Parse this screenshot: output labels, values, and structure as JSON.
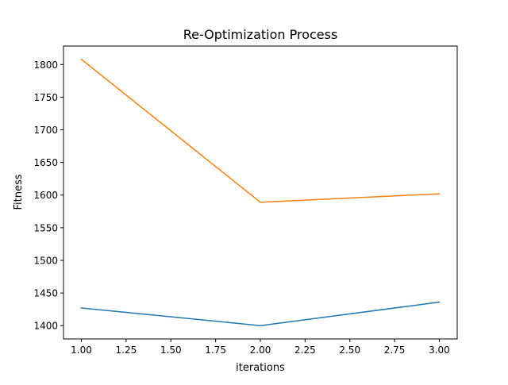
{
  "chart_data": {
    "type": "line",
    "title": "Re-Optimization Process",
    "xlabel": "iterations",
    "ylabel": "Fitness",
    "xlim": [
      0.9,
      3.1
    ],
    "ylim": [
      1379.6,
      1828.3
    ],
    "x_ticks": [
      "1.00",
      "1.25",
      "1.50",
      "1.75",
      "2.00",
      "2.25",
      "2.50",
      "2.75",
      "3.00"
    ],
    "y_ticks": [
      "1400",
      "1450",
      "1500",
      "1550",
      "1600",
      "1650",
      "1700",
      "1750",
      "1800"
    ],
    "x_tick_values": [
      1.0,
      1.25,
      1.5,
      1.75,
      2.0,
      2.25,
      2.5,
      2.75,
      3.0
    ],
    "y_tick_values": [
      1400,
      1450,
      1500,
      1550,
      1600,
      1650,
      1700,
      1750,
      1800
    ],
    "grid": false,
    "legend": "none",
    "x": [
      1,
      2,
      3
    ],
    "series": [
      {
        "color": "#1f77b4",
        "values": [
          1427,
          1400,
          1436
        ]
      },
      {
        "color": "#ff7f0e",
        "values": [
          1808,
          1589,
          1602
        ]
      }
    ]
  }
}
